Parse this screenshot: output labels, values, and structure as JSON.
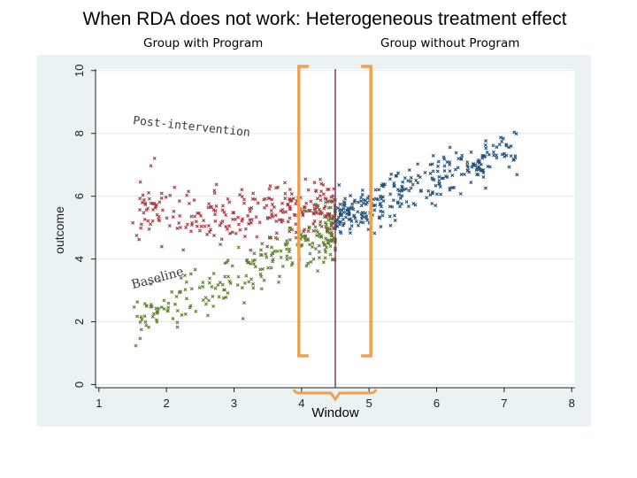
{
  "page": {
    "title": "When RDA does not work: Heterogeneous treatment effect",
    "group_with_label": "Group with Program",
    "group_without_label": "Group without Program"
  },
  "colors": {
    "plot_background": "#eaf2f3",
    "plot_area": "#ffffff",
    "grid": "#e3eaec",
    "red_series": "#a8373e",
    "green_series": "#5a7d2a",
    "blue_series": "#1f4e79",
    "window_bracket": "#f0a050",
    "cutoff_line": "#7a2a5a"
  },
  "chart_data": {
    "type": "scatter",
    "title": "When RDA does not work: Heterogeneous treatment effect",
    "xlabel": "",
    "ylabel": "outcome",
    "xlim": [
      1,
      8
    ],
    "ylim": [
      0,
      10
    ],
    "x_ticks": [
      "1",
      "2",
      "3",
      "4",
      "5",
      "6",
      "7",
      "8"
    ],
    "y_ticks": [
      "0",
      "2",
      "4",
      "6",
      "8",
      "10"
    ],
    "grid": true,
    "legend": "none",
    "cutoff_x": 4.5,
    "window": [
      4.0,
      5.0
    ],
    "series": [
      {
        "name": "Post-intervention (group with program)",
        "color": "red",
        "x_range": [
          1.5,
          4.5
        ],
        "trend": {
          "intercept": 5.5,
          "slope": 0.0
        },
        "noise_sd": 0.48,
        "count": 290,
        "seed": 11
      },
      {
        "name": "Baseline (group with program)",
        "color": "green",
        "x_range": [
          1.5,
          4.5
        ],
        "trend": {
          "intercept": 0.65,
          "slope": 0.95
        },
        "noise_sd": 0.42,
        "count": 260,
        "seed": 23
      },
      {
        "name": "Group without program",
        "color": "blue",
        "x_range": [
          4.5,
          7.2
        ],
        "trend": {
          "intercept": 1.35,
          "slope": 0.86
        },
        "noise_sd": 0.36,
        "count": 300,
        "seed": 37
      }
    ],
    "annotations": [
      {
        "text": "Post-intervention",
        "x": 1.5,
        "y": 8.3
      },
      {
        "text": "Baseline",
        "x": 1.5,
        "y": 3.05
      }
    ],
    "window_label": "Window"
  }
}
